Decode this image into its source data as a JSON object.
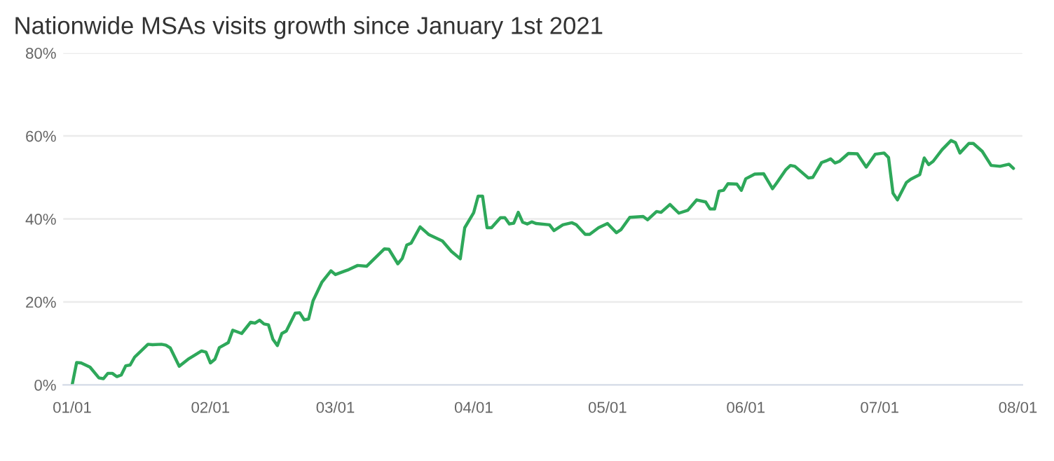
{
  "chart_data": {
    "type": "line",
    "title": "Nationwide MSAs visits growth since January 1st 2021",
    "x": [
      "2021-01-01",
      "2021-01-02",
      "2021-01-03",
      "2021-01-05",
      "2021-01-07",
      "2021-01-08",
      "2021-01-09",
      "2021-01-10",
      "2021-01-11",
      "2021-01-12",
      "2021-01-13",
      "2021-01-14",
      "2021-01-15",
      "2021-01-18",
      "2021-01-19",
      "2021-01-21",
      "2021-01-22",
      "2021-01-23",
      "2021-01-25",
      "2021-01-27",
      "2021-01-30",
      "2021-01-31",
      "2021-02-01",
      "2021-02-02",
      "2021-02-03",
      "2021-02-05",
      "2021-02-06",
      "2021-02-08",
      "2021-02-10",
      "2021-02-11",
      "2021-02-12",
      "2021-02-13",
      "2021-02-14",
      "2021-02-15",
      "2021-02-16",
      "2021-02-17",
      "2021-02-18",
      "2021-02-20",
      "2021-02-21",
      "2021-02-22",
      "2021-02-23",
      "2021-02-24",
      "2021-02-26",
      "2021-02-28",
      "2021-03-01",
      "2021-03-03",
      "2021-03-04",
      "2021-03-06",
      "2021-03-08",
      "2021-03-12",
      "2021-03-13",
      "2021-03-15",
      "2021-03-16",
      "2021-03-17",
      "2021-03-18",
      "2021-03-20",
      "2021-03-22",
      "2021-03-25",
      "2021-03-27",
      "2021-03-29",
      "2021-03-30",
      "2021-04-01",
      "2021-04-02",
      "2021-04-03",
      "2021-04-04",
      "2021-04-05",
      "2021-04-07",
      "2021-04-08",
      "2021-04-09",
      "2021-04-10",
      "2021-04-11",
      "2021-04-12",
      "2021-04-13",
      "2021-04-14",
      "2021-04-15",
      "2021-04-18",
      "2021-04-19",
      "2021-04-21",
      "2021-04-23",
      "2021-04-24",
      "2021-04-26",
      "2021-04-27",
      "2021-04-29",
      "2021-05-01",
      "2021-05-03",
      "2021-05-04",
      "2021-05-06",
      "2021-05-09",
      "2021-05-10",
      "2021-05-12",
      "2021-05-13",
      "2021-05-15",
      "2021-05-17",
      "2021-05-19",
      "2021-05-21",
      "2021-05-23",
      "2021-05-24",
      "2021-05-25",
      "2021-05-26",
      "2021-05-27",
      "2021-05-28",
      "2021-05-30",
      "2021-05-31",
      "2021-06-01",
      "2021-06-03",
      "2021-06-05",
      "2021-06-07",
      "2021-06-08",
      "2021-06-10",
      "2021-06-11",
      "2021-06-12",
      "2021-06-15",
      "2021-06-16",
      "2021-06-18",
      "2021-06-19",
      "2021-06-20",
      "2021-06-21",
      "2021-06-22",
      "2021-06-24",
      "2021-06-26",
      "2021-06-28",
      "2021-06-30",
      "2021-07-02",
      "2021-07-03",
      "2021-07-04",
      "2021-07-05",
      "2021-07-07",
      "2021-07-08",
      "2021-07-10",
      "2021-07-11",
      "2021-07-12",
      "2021-07-13",
      "2021-07-15",
      "2021-07-17",
      "2021-07-18",
      "2021-07-19",
      "2021-07-21",
      "2021-07-22",
      "2021-07-24",
      "2021-07-26",
      "2021-07-28",
      "2021-07-30",
      "2021-07-31"
    ],
    "series": [
      {
        "color": "#2ea85a",
        "values": [
          0,
          5.4,
          5.3,
          4.3,
          1.7,
          1.5,
          2.8,
          2.8,
          2.0,
          2.4,
          4.6,
          4.8,
          6.7,
          9.8,
          9.7,
          9.8,
          9.6,
          8.9,
          4.5,
          6.2,
          8.2,
          7.9,
          5.3,
          6.2,
          9.0,
          10.2,
          13.2,
          12.4,
          15.1,
          14.9,
          15.6,
          14.7,
          14.5,
          11.0,
          9.5,
          12.4,
          13.0,
          17.3,
          17.4,
          15.7,
          15.9,
          20.3,
          24.8,
          27.5,
          26.6,
          27.4,
          27.8,
          28.8,
          28.6,
          32.8,
          32.7,
          29.2,
          30.5,
          33.7,
          34.2,
          38.1,
          36.2,
          34.7,
          32.2,
          30.4,
          37.9,
          41.5,
          45.5,
          45.5,
          37.9,
          37.9,
          40.3,
          40.3,
          38.8,
          39.0,
          41.6,
          39.2,
          38.8,
          39.3,
          38.9,
          38.6,
          37.2,
          38.6,
          39.1,
          38.6,
          36.3,
          36.3,
          37.9,
          38.9,
          36.7,
          37.4,
          40.4,
          40.6,
          39.8,
          41.8,
          41.6,
          43.5,
          41.4,
          42.1,
          44.6,
          44.1,
          42.4,
          42.4,
          46.7,
          46.9,
          48.5,
          48.4,
          46.9,
          49.7,
          50.8,
          50.9,
          47.3,
          48.8,
          51.9,
          52.9,
          52.7,
          49.9,
          50.0,
          53.6,
          54.0,
          54.5,
          53.5,
          53.9,
          55.8,
          55.7,
          52.5,
          55.6,
          55.9,
          54.8,
          46.2,
          44.6,
          48.8,
          49.6,
          50.7,
          54.7,
          53.1,
          53.9,
          56.7,
          58.9,
          58.4,
          55.9,
          58.2,
          58.2,
          56.3,
          52.9,
          52.7,
          53.2,
          52.2
        ]
      }
    ],
    "xlim": [
      "2020-12-30",
      "2021-08-02"
    ],
    "xticks": [
      {
        "value": "2021-01-01",
        "label": "01/01"
      },
      {
        "value": "2021-02-01",
        "label": "02/01"
      },
      {
        "value": "2021-03-01",
        "label": "03/01"
      },
      {
        "value": "2021-04-01",
        "label": "04/01"
      },
      {
        "value": "2021-05-01",
        "label": "05/01"
      },
      {
        "value": "2021-06-01",
        "label": "06/01"
      },
      {
        "value": "2021-07-01",
        "label": "07/01"
      },
      {
        "value": "2021-08-01",
        "label": "08/01"
      }
    ],
    "ylim": [
      0,
      80
    ],
    "yticks": [
      {
        "value": 0,
        "label": "0%"
      },
      {
        "value": 20,
        "label": "20%"
      },
      {
        "value": 40,
        "label": "40%"
      },
      {
        "value": 60,
        "label": "60%"
      },
      {
        "value": 80,
        "label": "80%"
      }
    ],
    "grid": "y",
    "legend": false,
    "marker": "none",
    "line_style": "solid"
  }
}
